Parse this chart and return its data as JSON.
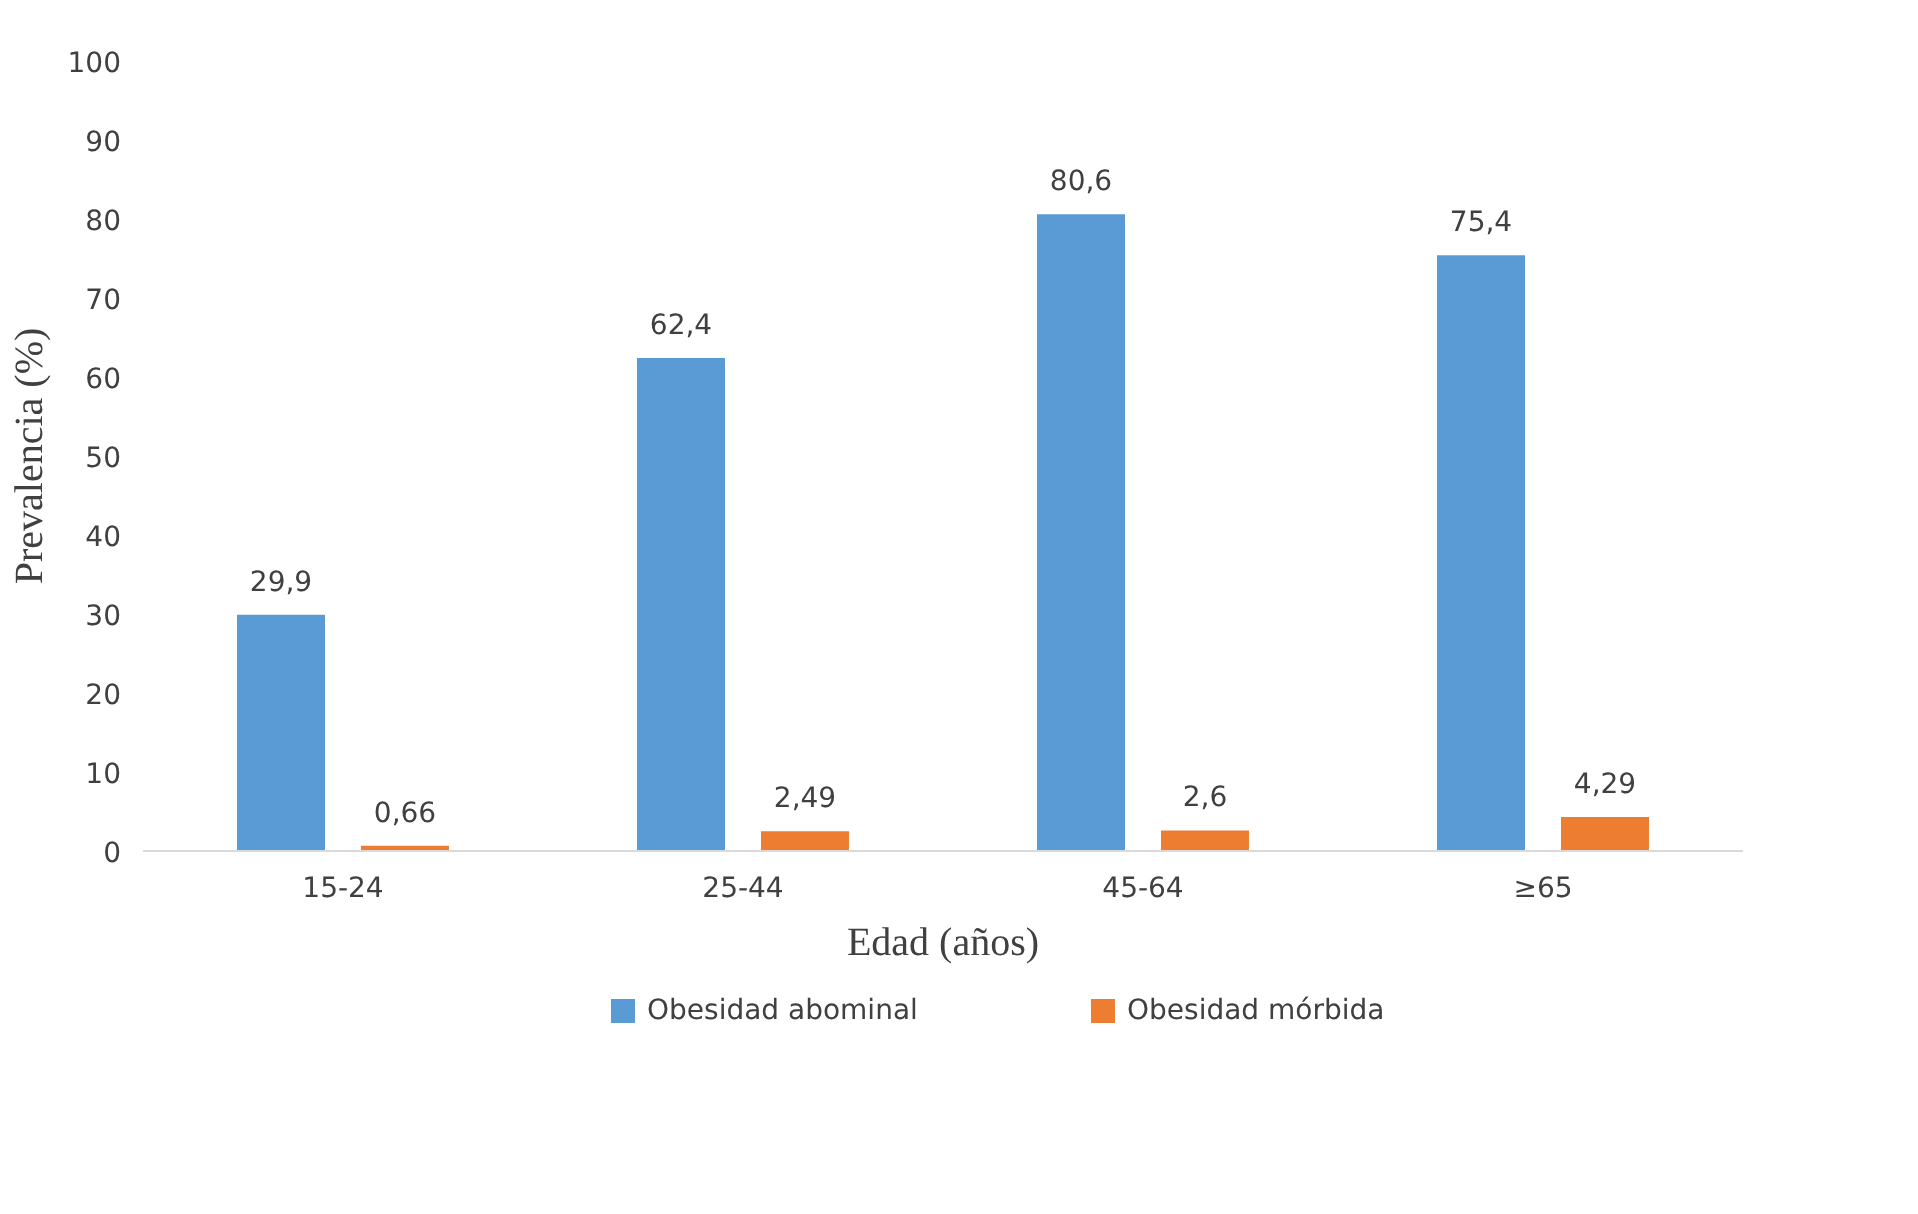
{
  "chart_data": {
    "type": "bar",
    "xlabel": "Edad (años)",
    "ylabel": "Prevalencia (%)",
    "categories": [
      "15-24",
      "25-44",
      "45-64",
      "≥65"
    ],
    "series": [
      {
        "name": "Obesidad abominal",
        "color": "#5b9bd5",
        "values": [
          29.9,
          62.4,
          80.6,
          75.4
        ],
        "value_labels": [
          "29,9",
          "62,4",
          "80,6",
          "75,4"
        ]
      },
      {
        "name": "Obesidad mórbida",
        "color": "#ed7d31",
        "values": [
          0.66,
          2.49,
          2.6,
          4.29
        ],
        "value_labels": [
          "0,66",
          "2,49",
          "2,6",
          "4,29"
        ]
      }
    ],
    "ylim": [
      0,
      100
    ],
    "yticks": [
      0,
      10,
      20,
      30,
      40,
      50,
      60,
      70,
      80,
      90,
      100
    ],
    "grid": false,
    "legend": "bottom"
  }
}
